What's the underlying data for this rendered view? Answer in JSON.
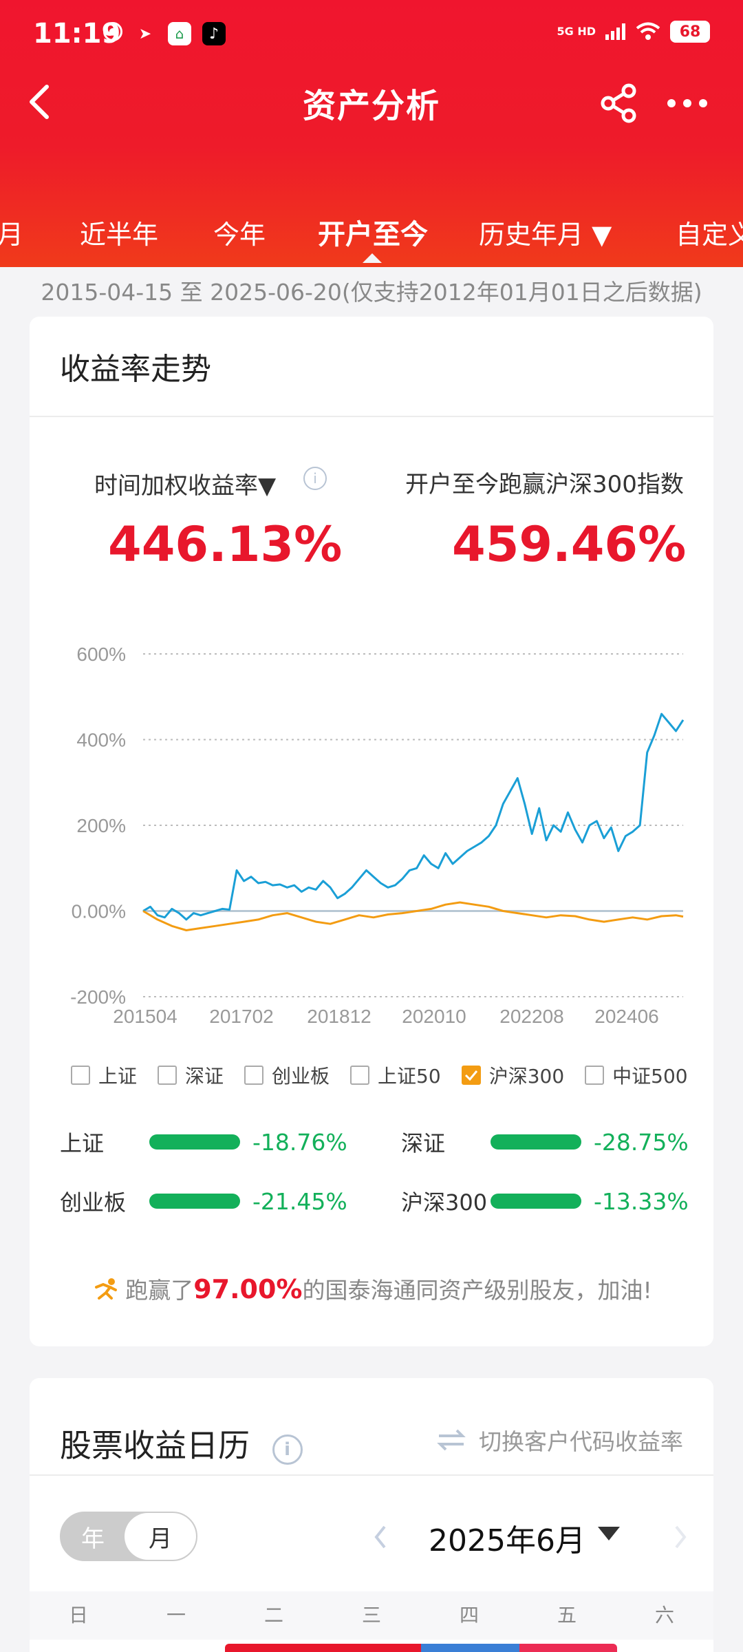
{
  "status": {
    "time": "11:19",
    "network": "5G HD",
    "battery": "68"
  },
  "nav": {
    "title": "资产分析"
  },
  "tabs": [
    {
      "label": "月"
    },
    {
      "label": "近半年"
    },
    {
      "label": "今年"
    },
    {
      "label": "开户至今"
    },
    {
      "label": "历史年月 ▼"
    },
    {
      "label": "自定义"
    }
  ],
  "date_range": "2015-04-15 至 2025-06-20(仅支持2012年01月01日之后数据)",
  "trend_card": {
    "title": "收益率走势",
    "metric_left_label": "时间加权收益率▼",
    "metric_left_value": "446.13%",
    "metric_right_label": "开户至今跑赢沪深300指数",
    "metric_right_value": "459.46%"
  },
  "chart_data": {
    "type": "line",
    "ylabels": [
      "600%",
      "400%",
      "200%",
      "0.00%",
      "-200%"
    ],
    "xlabels": [
      "201504",
      "201702",
      "201812",
      "202010",
      "202208",
      "202406"
    ],
    "ylim": [
      -200,
      600
    ],
    "grid": true,
    "series": [
      {
        "name": "",
        "color": "#1a9fd6",
        "points": [
          [
            0,
            0
          ],
          [
            2,
            10
          ],
          [
            4,
            -10
          ],
          [
            6,
            -15
          ],
          [
            8,
            5
          ],
          [
            10,
            -5
          ],
          [
            12,
            -20
          ],
          [
            14,
            -5
          ],
          [
            16,
            -10
          ],
          [
            18,
            -5
          ],
          [
            20,
            0
          ],
          [
            22,
            5
          ],
          [
            24,
            3
          ],
          [
            26,
            95
          ],
          [
            28,
            70
          ],
          [
            30,
            80
          ],
          [
            32,
            65
          ],
          [
            34,
            68
          ],
          [
            36,
            60
          ],
          [
            38,
            62
          ],
          [
            40,
            55
          ],
          [
            42,
            60
          ],
          [
            44,
            45
          ],
          [
            46,
            55
          ],
          [
            48,
            50
          ],
          [
            50,
            70
          ],
          [
            52,
            55
          ],
          [
            54,
            30
          ],
          [
            56,
            40
          ],
          [
            58,
            55
          ],
          [
            60,
            75
          ],
          [
            62,
            95
          ],
          [
            64,
            80
          ],
          [
            66,
            65
          ],
          [
            68,
            55
          ],
          [
            70,
            60
          ],
          [
            72,
            75
          ],
          [
            74,
            95
          ],
          [
            76,
            100
          ],
          [
            78,
            130
          ],
          [
            80,
            110
          ],
          [
            82,
            100
          ],
          [
            84,
            135
          ],
          [
            86,
            110
          ],
          [
            88,
            125
          ],
          [
            90,
            140
          ],
          [
            92,
            150
          ],
          [
            94,
            160
          ],
          [
            96,
            175
          ],
          [
            98,
            200
          ],
          [
            100,
            250
          ],
          [
            102,
            280
          ],
          [
            104,
            310
          ],
          [
            106,
            250
          ],
          [
            108,
            180
          ],
          [
            110,
            240
          ],
          [
            112,
            165
          ],
          [
            114,
            200
          ],
          [
            116,
            185
          ],
          [
            118,
            230
          ],
          [
            120,
            190
          ],
          [
            122,
            160
          ],
          [
            124,
            200
          ],
          [
            126,
            210
          ],
          [
            128,
            170
          ],
          [
            130,
            195
          ],
          [
            132,
            140
          ],
          [
            134,
            175
          ],
          [
            136,
            185
          ],
          [
            138,
            200
          ],
          [
            140,
            370
          ],
          [
            142,
            410
          ],
          [
            144,
            460
          ],
          [
            146,
            440
          ],
          [
            148,
            420
          ],
          [
            150,
            446
          ]
        ]
      },
      {
        "name": "沪深300",
        "color": "#f39c12",
        "points": [
          [
            0,
            0
          ],
          [
            4,
            -20
          ],
          [
            8,
            -35
          ],
          [
            12,
            -45
          ],
          [
            16,
            -40
          ],
          [
            20,
            -35
          ],
          [
            24,
            -30
          ],
          [
            28,
            -25
          ],
          [
            32,
            -20
          ],
          [
            36,
            -10
          ],
          [
            40,
            -5
          ],
          [
            44,
            -15
          ],
          [
            48,
            -25
          ],
          [
            52,
            -30
          ],
          [
            56,
            -20
          ],
          [
            60,
            -10
          ],
          [
            64,
            -15
          ],
          [
            68,
            -8
          ],
          [
            72,
            -5
          ],
          [
            76,
            0
          ],
          [
            80,
            5
          ],
          [
            84,
            15
          ],
          [
            88,
            20
          ],
          [
            92,
            15
          ],
          [
            96,
            10
          ],
          [
            100,
            0
          ],
          [
            104,
            -5
          ],
          [
            108,
            -10
          ],
          [
            112,
            -15
          ],
          [
            116,
            -10
          ],
          [
            120,
            -12
          ],
          [
            124,
            -20
          ],
          [
            128,
            -25
          ],
          [
            132,
            -20
          ],
          [
            136,
            -15
          ],
          [
            140,
            -20
          ],
          [
            144,
            -12
          ],
          [
            148,
            -10
          ],
          [
            150,
            -13
          ]
        ]
      }
    ],
    "xmax": 150
  },
  "legend": [
    {
      "label": "上证",
      "checked": false
    },
    {
      "label": "深证",
      "checked": false
    },
    {
      "label": "创业板",
      "checked": false
    },
    {
      "label": "上证50",
      "checked": false
    },
    {
      "label": "沪深300",
      "checked": true
    },
    {
      "label": "中证500",
      "checked": false
    }
  ],
  "indices": [
    {
      "name": "上证",
      "value": "-18.76%"
    },
    {
      "name": "深证",
      "value": "-28.75%"
    },
    {
      "name": "创业板",
      "value": "-21.45%"
    },
    {
      "name": "沪深300",
      "value": "-13.33%"
    }
  ],
  "beat": {
    "prefix": "跑赢了",
    "pct": "97.00%",
    "suffix": "的国泰海通同资产级别股友，加油!"
  },
  "calendar": {
    "title": "股票收益日历",
    "switch_label": "切换客户代码收益率",
    "toggle_year": "年",
    "toggle_month": "月",
    "month": "2025年6月",
    "weekdays": [
      "日",
      "一",
      "二",
      "三",
      "四",
      "五",
      "六"
    ]
  },
  "colors": {
    "brand_red": "#e8172c",
    "green": "#13b05a",
    "blue_line": "#1a9fd6",
    "orange_line": "#f39c12"
  }
}
